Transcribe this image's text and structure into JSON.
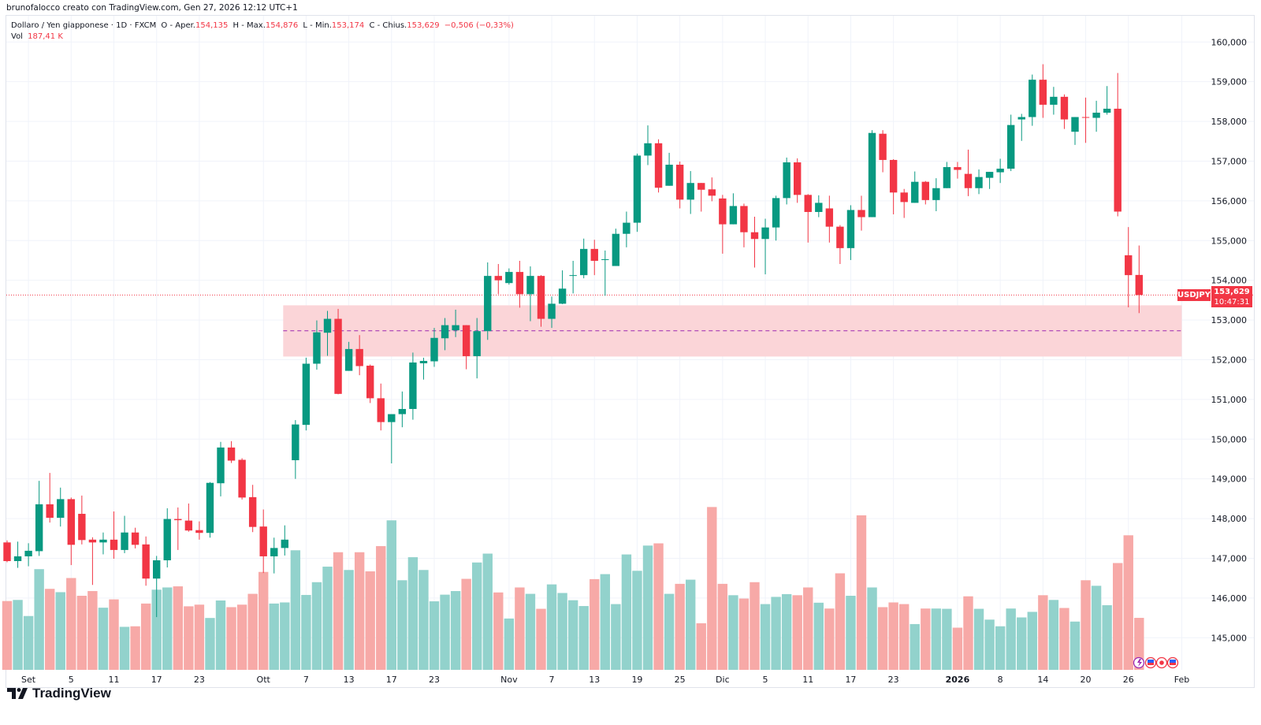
{
  "header": {
    "attribution": "brunofalocco creato con TradingView.com, Gen 27, 2026 12:12 UTC+1"
  },
  "legend": {
    "symbol": "Dollaro / Yen giapponese · 1D · FXCM",
    "open_label": "O - Aper.",
    "open": "154,135",
    "high_label": "H - Max.",
    "high": "154,876",
    "low_label": "L - Min.",
    "low": "153,174",
    "close_label": "C - Chius.",
    "close": "153,629",
    "change": "−0,506 (−0,33%)",
    "vol_label": "Vol",
    "vol": "187,41 K"
  },
  "price_tag": {
    "symbol": "USDJPY",
    "price": "153,629",
    "countdown": "10:47:31"
  },
  "logo": {
    "text": "TradingView"
  },
  "events": [
    "lightning-icon",
    "us-flag-icon",
    "dot-icon",
    "us-flag-icon"
  ],
  "colors": {
    "up": "#089981",
    "down": "#f23645",
    "vol_up": "#92d2cc",
    "vol_down": "#f7a9a7",
    "zone": "#fbd5d8",
    "zone_mid": "#9c27b0",
    "grid": "#f0f3fa"
  },
  "chart_data": {
    "type": "candlestick",
    "symbol": "USDJPY",
    "ylim": [
      144.2,
      160.7
    ],
    "current_price": 153.629,
    "price_ticks": [
      {
        "v": 145,
        "label": "145,000"
      },
      {
        "v": 146,
        "label": "146,000"
      },
      {
        "v": 147,
        "label": "147,000"
      },
      {
        "v": 148,
        "label": "148,000"
      },
      {
        "v": 149,
        "label": "149,000"
      },
      {
        "v": 150,
        "label": "150,000"
      },
      {
        "v": 151,
        "label": "151,000"
      },
      {
        "v": 152,
        "label": "152,000"
      },
      {
        "v": 153,
        "label": "153,000"
      },
      {
        "v": 154,
        "label": "154,000"
      },
      {
        "v": 155,
        "label": "155,000"
      },
      {
        "v": 156,
        "label": "156,000"
      },
      {
        "v": 157,
        "label": "157,000"
      },
      {
        "v": 158,
        "label": "158,000"
      },
      {
        "v": 159,
        "label": "159,000"
      },
      {
        "v": 160,
        "label": "160,000"
      }
    ],
    "time_labels": [
      {
        "i": 2,
        "label": "Set"
      },
      {
        "i": 6,
        "label": "5"
      },
      {
        "i": 10,
        "label": "11"
      },
      {
        "i": 14,
        "label": "17"
      },
      {
        "i": 18,
        "label": "23"
      },
      {
        "i": 24,
        "label": "Ott"
      },
      {
        "i": 28,
        "label": "7"
      },
      {
        "i": 32,
        "label": "13"
      },
      {
        "i": 36,
        "label": "17"
      },
      {
        "i": 40,
        "label": "23"
      },
      {
        "i": 47,
        "label": "Nov"
      },
      {
        "i": 51,
        "label": "7"
      },
      {
        "i": 55,
        "label": "13"
      },
      {
        "i": 59,
        "label": "19"
      },
      {
        "i": 63,
        "label": "25"
      },
      {
        "i": 67,
        "label": "Dic"
      },
      {
        "i": 71,
        "label": "5"
      },
      {
        "i": 75,
        "label": "11"
      },
      {
        "i": 79,
        "label": "17"
      },
      {
        "i": 83,
        "label": "23"
      },
      {
        "i": 89,
        "label": "2026",
        "bold": true
      },
      {
        "i": 93,
        "label": "8"
      },
      {
        "i": 97,
        "label": "14"
      },
      {
        "i": 101,
        "label": "20"
      },
      {
        "i": 105,
        "label": "26"
      },
      {
        "i": 110,
        "label": "Feb"
      }
    ],
    "zone": {
      "top": 153.37,
      "bottom": 152.08,
      "mid": 152.73,
      "start_index": 26,
      "end_index": 110
    },
    "ohlcv_fields": [
      "open",
      "high",
      "low",
      "close",
      "volume_k"
    ],
    "ohlcv": [
      [
        147.4,
        147.45,
        146.9,
        146.93,
        248
      ],
      [
        146.93,
        147.42,
        146.76,
        147.05,
        252
      ],
      [
        147.05,
        147.38,
        146.8,
        147.19,
        194
      ],
      [
        147.18,
        148.95,
        147.06,
        148.36,
        363
      ],
      [
        148.36,
        149.15,
        147.9,
        148.02,
        292
      ],
      [
        148.02,
        148.78,
        147.8,
        148.49,
        280
      ],
      [
        148.49,
        148.53,
        146.83,
        147.34,
        331
      ],
      [
        148.12,
        148.58,
        147.35,
        147.46,
        267
      ],
      [
        147.47,
        147.53,
        146.33,
        147.4,
        284
      ],
      [
        147.4,
        147.65,
        147.1,
        147.47,
        224
      ],
      [
        147.47,
        148.18,
        146.99,
        147.21,
        254
      ],
      [
        147.21,
        148.07,
        147.13,
        147.65,
        155
      ],
      [
        147.65,
        147.77,
        147.25,
        147.34,
        157
      ],
      [
        147.35,
        147.55,
        146.31,
        146.49,
        239
      ],
      [
        146.49,
        147.06,
        145.52,
        146.95,
        289
      ],
      [
        146.95,
        148.26,
        146.77,
        147.99,
        297
      ],
      [
        147.99,
        148.28,
        147.21,
        147.96,
        301
      ],
      [
        147.95,
        148.38,
        147.67,
        147.7,
        229
      ],
      [
        147.71,
        147.93,
        147.47,
        147.64,
        235
      ],
      [
        147.64,
        148.92,
        147.52,
        148.9,
        187
      ],
      [
        148.89,
        149.93,
        148.56,
        149.79,
        250
      ],
      [
        149.79,
        149.95,
        149.4,
        149.46,
        226
      ],
      [
        149.48,
        149.52,
        148.48,
        148.53,
        235
      ],
      [
        148.54,
        148.85,
        147.66,
        147.79,
        274
      ],
      [
        147.8,
        148.23,
        146.63,
        147.05,
        353
      ],
      [
        147.05,
        147.52,
        146.62,
        147.26,
        239
      ],
      [
        147.26,
        147.83,
        147.07,
        147.47,
        243
      ],
      [
        149.47,
        150.48,
        149.0,
        150.37,
        431
      ],
      [
        150.36,
        152.05,
        150.22,
        151.9,
        270
      ],
      [
        151.9,
        152.99,
        151.75,
        152.69,
        316
      ],
      [
        152.68,
        153.23,
        152.1,
        153.03,
        372
      ],
      [
        153.03,
        153.28,
        151.13,
        151.14,
        424
      ],
      [
        151.72,
        152.45,
        151.72,
        152.27,
        360
      ],
      [
        152.27,
        152.62,
        151.61,
        151.84,
        424
      ],
      [
        151.85,
        151.88,
        150.91,
        151.03,
        355
      ],
      [
        151.03,
        151.4,
        150.22,
        150.43,
        446
      ],
      [
        150.43,
        150.63,
        149.39,
        150.63,
        539
      ],
      [
        150.63,
        151.2,
        150.3,
        150.76,
        323
      ],
      [
        150.76,
        152.18,
        150.49,
        151.93,
        406
      ],
      [
        151.91,
        152.05,
        151.5,
        151.97,
        360
      ],
      [
        151.96,
        152.8,
        151.82,
        152.55,
        247
      ],
      [
        152.54,
        153.05,
        152.24,
        152.87,
        271
      ],
      [
        152.74,
        153.26,
        152.57,
        152.87,
        284
      ],
      [
        152.87,
        152.87,
        151.76,
        152.09,
        328
      ],
      [
        152.09,
        153.05,
        151.53,
        152.72,
        387
      ],
      [
        152.72,
        154.45,
        152.5,
        154.11,
        419
      ],
      [
        154.11,
        154.41,
        153.65,
        154.0,
        279
      ],
      [
        153.93,
        154.3,
        153.89,
        154.21,
        185
      ],
      [
        154.21,
        154.49,
        153.31,
        153.65,
        297
      ],
      [
        153.65,
        154.35,
        152.97,
        154.11,
        274
      ],
      [
        154.11,
        154.13,
        152.83,
        153.03,
        220
      ],
      [
        153.03,
        153.59,
        152.8,
        153.41,
        308
      ],
      [
        153.41,
        154.25,
        153.4,
        153.79,
        277
      ],
      [
        154.11,
        154.49,
        153.67,
        154.13,
        251
      ],
      [
        154.13,
        155.05,
        154.05,
        154.79,
        230
      ],
      [
        154.79,
        155.02,
        154.13,
        154.49,
        327
      ],
      [
        154.51,
        154.75,
        153.61,
        154.53,
        345
      ],
      [
        154.36,
        155.3,
        154.36,
        155.17,
        237
      ],
      [
        155.17,
        155.73,
        154.83,
        155.45,
        416
      ],
      [
        155.45,
        157.19,
        155.22,
        157.14,
        357
      ],
      [
        157.14,
        157.9,
        156.9,
        157.45,
        448
      ],
      [
        157.45,
        157.55,
        156.21,
        156.33,
        456
      ],
      [
        156.38,
        157.21,
        156.38,
        156.91,
        274
      ],
      [
        156.91,
        156.99,
        155.81,
        156.03,
        310
      ],
      [
        156.03,
        156.75,
        155.67,
        156.45,
        325
      ],
      [
        156.45,
        156.45,
        155.73,
        156.28,
        168
      ],
      [
        156.29,
        156.59,
        155.99,
        156.13,
        587
      ],
      [
        156.06,
        156.15,
        154.67,
        155.41,
        310
      ],
      [
        155.41,
        156.19,
        155.41,
        155.87,
        269
      ],
      [
        155.87,
        155.93,
        154.83,
        155.21,
        257
      ],
      [
        155.21,
        155.6,
        154.32,
        155.04,
        316
      ],
      [
        155.04,
        155.55,
        154.15,
        155.33,
        237
      ],
      [
        155.33,
        156.13,
        155.0,
        156.07,
        263
      ],
      [
        156.07,
        157.09,
        155.91,
        156.97,
        273
      ],
      [
        156.97,
        157.07,
        155.95,
        156.15,
        269
      ],
      [
        156.15,
        156.17,
        154.95,
        155.72,
        297
      ],
      [
        155.72,
        156.14,
        155.59,
        155.95,
        242
      ],
      [
        155.81,
        156.13,
        154.95,
        155.35,
        221
      ],
      [
        155.35,
        155.39,
        154.41,
        154.81,
        348
      ],
      [
        154.81,
        155.89,
        154.51,
        155.77,
        267
      ],
      [
        155.77,
        156.13,
        155.25,
        155.59,
        557
      ],
      [
        155.59,
        157.78,
        155.59,
        157.71,
        297
      ],
      [
        157.69,
        157.78,
        156.72,
        157.03,
        226
      ],
      [
        157.03,
        157.05,
        155.66,
        156.21,
        243
      ],
      [
        156.21,
        156.3,
        155.57,
        155.97,
        237
      ],
      [
        155.95,
        156.74,
        155.95,
        156.48,
        165
      ],
      [
        156.48,
        156.5,
        155.91,
        156.02,
        221
      ],
      [
        156.02,
        156.57,
        155.74,
        156.32,
        221
      ],
      [
        156.32,
        156.98,
        156.32,
        156.85,
        220
      ],
      [
        156.85,
        156.98,
        156.56,
        156.78,
        152
      ],
      [
        156.68,
        157.29,
        156.12,
        156.32,
        265
      ],
      [
        156.32,
        156.79,
        156.17,
        156.6,
        220
      ],
      [
        156.58,
        156.73,
        156.3,
        156.73,
        181
      ],
      [
        156.72,
        157.06,
        156.45,
        156.81,
        157
      ],
      [
        156.81,
        158.17,
        156.75,
        157.91,
        221
      ],
      [
        158.05,
        158.19,
        157.51,
        158.11,
        189
      ],
      [
        158.11,
        159.18,
        157.89,
        159.05,
        209
      ],
      [
        159.05,
        159.44,
        158.09,
        158.42,
        269
      ],
      [
        158.42,
        158.87,
        158.17,
        158.62,
        252
      ],
      [
        158.62,
        158.68,
        157.81,
        158.05,
        223
      ],
      [
        157.74,
        158.11,
        157.41,
        158.11,
        174
      ],
      [
        158.11,
        158.6,
        157.46,
        158.1,
        323
      ],
      [
        158.09,
        158.52,
        157.74,
        158.22,
        303
      ],
      [
        158.22,
        158.89,
        158.17,
        158.32,
        233
      ],
      [
        158.32,
        159.22,
        155.61,
        155.73,
        385
      ],
      [
        154.63,
        155.34,
        153.32,
        154.13,
        485
      ],
      [
        154.135,
        154.876,
        153.174,
        153.629,
        187.41
      ]
    ]
  }
}
